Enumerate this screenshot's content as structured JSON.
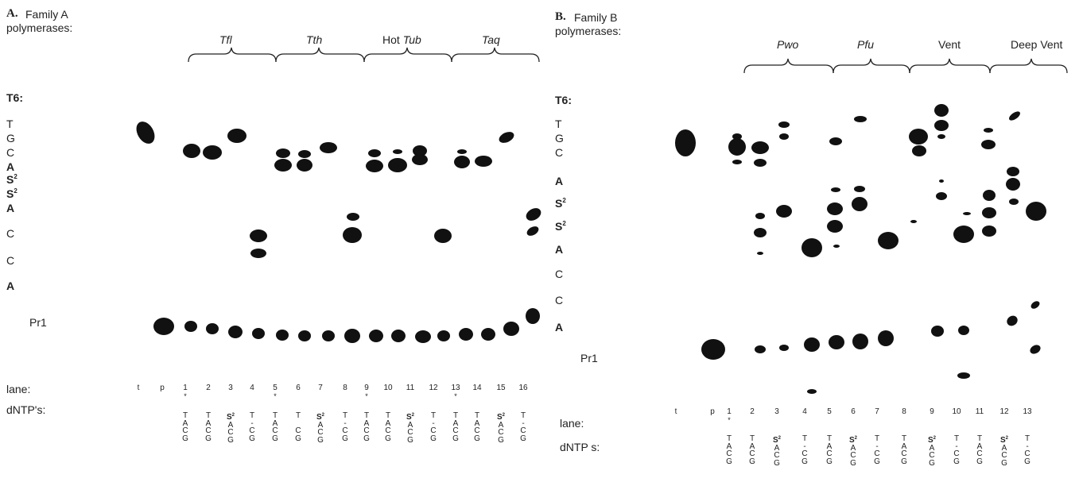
{
  "panel_a": {
    "title_letter": "A.",
    "title_line1": "Family A",
    "title_line2": "polymerases:",
    "template_label": "T6:",
    "template_bases": [
      "T",
      "G",
      "C",
      "A",
      "S2",
      "S2",
      "A",
      "C",
      "C",
      "A"
    ],
    "primer_label": "Pr1",
    "lane_label": "lane:",
    "dntp_label": "dNTP's:",
    "lane_t": "t",
    "lane_p": "p",
    "lanes": [
      "1",
      "2",
      "3",
      "4",
      "5",
      "6",
      "7",
      "8",
      "9",
      "10",
      "11",
      "12",
      "13",
      "14",
      "15",
      "16"
    ],
    "starred_lanes": [
      "1",
      "5",
      "9",
      "13"
    ],
    "enzymes": [
      {
        "name": "Tfl"
      },
      {
        "name": "Tth"
      },
      {
        "prefix": "Hot ",
        "name": "Tub"
      },
      {
        "name": "Taq"
      }
    ],
    "dntps": [
      [
        "T",
        "A",
        "C",
        "G"
      ],
      [
        "T",
        "A",
        "C",
        "G"
      ],
      [
        "S2",
        "A",
        "C",
        "G"
      ],
      [
        "T",
        "-",
        "C",
        "G"
      ],
      [
        "T",
        "A",
        "C",
        "G"
      ],
      [
        "T",
        "",
        "C",
        "G"
      ],
      [
        "S2",
        "A",
        "C",
        "G"
      ],
      [
        "T",
        "-",
        "C",
        "G"
      ],
      [
        "T",
        "A",
        "C",
        "G"
      ],
      [
        "T",
        "A",
        "C",
        "G"
      ],
      [
        "S2",
        "A",
        "C",
        "G"
      ],
      [
        "T",
        "-",
        "C",
        "G"
      ],
      [
        "T",
        "A",
        "C",
        "G"
      ],
      [
        "T",
        "A",
        "C",
        "G"
      ],
      [
        "S2",
        "A",
        "C",
        "G"
      ],
      [
        "T",
        "-",
        "C",
        "G"
      ]
    ]
  },
  "panel_b": {
    "title_letter": "B.",
    "title_line1": "Family B",
    "title_line2": "polymerases:",
    "template_label": "T6:",
    "template_bases": [
      "T",
      "G",
      "C",
      "A",
      "S2",
      "S2",
      "A",
      "C",
      "C",
      "A"
    ],
    "primer_label": "Pr1",
    "lane_label": "lane:",
    "dntp_label": "dNTP s:",
    "lane_t": "t",
    "lane_p": "p",
    "lanes": [
      "1",
      "2",
      "3",
      "4",
      "5",
      "6",
      "7",
      "8",
      "9",
      "10",
      "11",
      "12",
      "13"
    ],
    "starred_lanes": [
      "1"
    ],
    "enzymes": [
      {
        "name": "Pwo"
      },
      {
        "name": "Pfu"
      },
      {
        "plain": "Vent"
      },
      {
        "plain": "Deep Vent"
      }
    ],
    "dntps": [
      [
        "T",
        "A",
        "C",
        "G"
      ],
      [
        "T",
        "A",
        "C",
        "G"
      ],
      [
        "S2",
        "A",
        "C",
        "G"
      ],
      [
        "T",
        "-",
        "C",
        "G"
      ],
      [
        "T",
        "A",
        "C",
        "G"
      ],
      [
        "S2",
        "A",
        "C",
        "G"
      ],
      [
        "T",
        "-",
        "C",
        "G"
      ],
      [
        "T",
        "A",
        "C",
        "G"
      ],
      [
        "S2",
        "A",
        "C",
        "G"
      ],
      [
        "T",
        "-",
        "C",
        "G"
      ],
      [
        "T",
        "A",
        "C",
        "G"
      ],
      [
        "S2",
        "A",
        "C",
        "G"
      ],
      [
        "T",
        "-",
        "C",
        "G"
      ]
    ]
  }
}
